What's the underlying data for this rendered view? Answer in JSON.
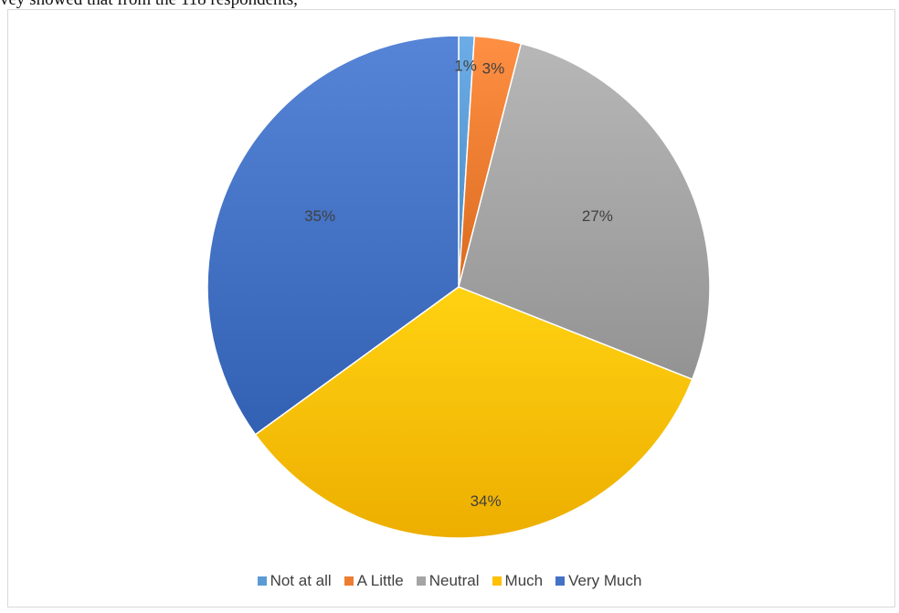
{
  "page": {
    "top_text": "vey showed that from the 118 respondents,"
  },
  "chart_data": {
    "type": "pie",
    "title": "",
    "categories": [
      "Not at all",
      "A Little",
      "Neutral",
      "Much",
      "Very Much"
    ],
    "values": [
      1,
      3,
      27,
      34,
      35
    ],
    "labels": [
      "1%",
      "3%",
      "27%",
      "34%",
      "35%"
    ],
    "colors": [
      "#5B9BD5",
      "#ED7D31",
      "#A5A5A5",
      "#FFC000",
      "#4472C4"
    ],
    "legend_position": "bottom"
  }
}
